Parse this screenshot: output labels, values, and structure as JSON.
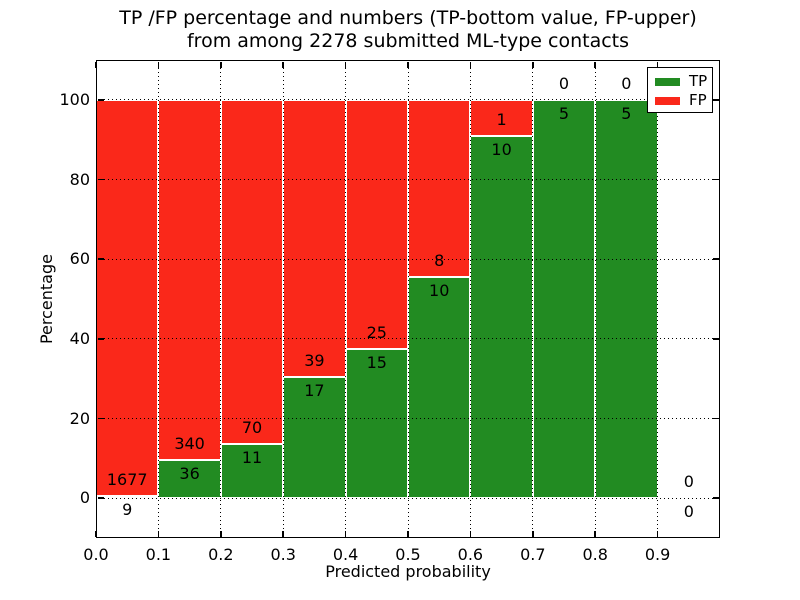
{
  "chart_data": {
    "type": "bar",
    "stacked": true,
    "title_line1": "TP /FP percentage and numbers (TP-bottom value, FP-upper)",
    "title_line2": "from among 2278 submitted ML-type contacts",
    "xlabel": "Predicted probability",
    "ylabel": "Percentage",
    "xlim": [
      0.0,
      1.0
    ],
    "ylim": [
      -10,
      110
    ],
    "grid": "dotted both axes",
    "legend_position": "upper right",
    "colors": {
      "tp": "#228b22",
      "fp": "#fa281a",
      "grid": "#000000",
      "background": "#ffffff"
    },
    "legend": {
      "entries": [
        {
          "label": "TP",
          "color": "#228b22"
        },
        {
          "label": "FP",
          "color": "#fa281a"
        }
      ]
    },
    "xticks": [
      {
        "value": 0.0,
        "label": "0.0"
      },
      {
        "value": 0.1,
        "label": "0.1"
      },
      {
        "value": 0.2,
        "label": "0.2"
      },
      {
        "value": 0.3,
        "label": "0.3"
      },
      {
        "value": 0.4,
        "label": "0.4"
      },
      {
        "value": 0.5,
        "label": "0.5"
      },
      {
        "value": 0.6,
        "label": "0.6"
      },
      {
        "value": 0.7,
        "label": "0.7"
      },
      {
        "value": 0.8,
        "label": "0.8"
      },
      {
        "value": 0.9,
        "label": "0.9"
      }
    ],
    "yticks": [
      {
        "value": 0,
        "label": "0"
      },
      {
        "value": 20,
        "label": "20"
      },
      {
        "value": 40,
        "label": "40"
      },
      {
        "value": 60,
        "label": "60"
      },
      {
        "value": 80,
        "label": "80"
      },
      {
        "value": 100,
        "label": "100"
      }
    ],
    "bins": [
      {
        "range": [
          0.0,
          0.1
        ],
        "tp": 9,
        "fp": 1677
      },
      {
        "range": [
          0.1,
          0.2
        ],
        "tp": 36,
        "fp": 340
      },
      {
        "range": [
          0.2,
          0.3
        ],
        "tp": 11,
        "fp": 70
      },
      {
        "range": [
          0.3,
          0.4
        ],
        "tp": 17,
        "fp": 39
      },
      {
        "range": [
          0.4,
          0.5
        ],
        "tp": 15,
        "fp": 25
      },
      {
        "range": [
          0.5,
          0.6
        ],
        "tp": 10,
        "fp": 8
      },
      {
        "range": [
          0.6,
          0.7
        ],
        "tp": 10,
        "fp": 1
      },
      {
        "range": [
          0.7,
          0.8
        ],
        "tp": 5,
        "fp": 0
      },
      {
        "range": [
          0.8,
          0.9
        ],
        "tp": 5,
        "fp": 0
      },
      {
        "range": [
          0.9,
          1.0
        ],
        "tp": 0,
        "fp": 0
      }
    ]
  }
}
